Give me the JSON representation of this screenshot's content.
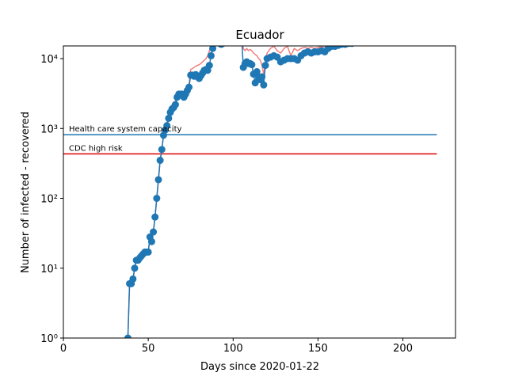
{
  "chart_data": {
    "type": "line",
    "title": "Ecuador",
    "xlabel": "Days since 2020-01-22",
    "ylabel": "Number of infected - recovered",
    "yscale": "log",
    "xlim": [
      0,
      231
    ],
    "ylim": [
      1,
      15200
    ],
    "xticks": [
      0,
      50,
      100,
      150,
      200
    ],
    "yticks": [
      {
        "value": 1,
        "label": "10⁰"
      },
      {
        "value": 10,
        "label": "10¹"
      },
      {
        "value": 100,
        "label": "10²"
      },
      {
        "value": 1000,
        "label": "10³"
      },
      {
        "value": 10000,
        "label": "10⁴"
      }
    ],
    "x": [
      38,
      39,
      40,
      41,
      42,
      43,
      44,
      45,
      46,
      47,
      48,
      49,
      50,
      51,
      52,
      53,
      54,
      55,
      56,
      57,
      58,
      59,
      60,
      61,
      62,
      63,
      64,
      65,
      66,
      67,
      68,
      69,
      70,
      71,
      72,
      73,
      74,
      75,
      76,
      77,
      78,
      79,
      80,
      81,
      82,
      83,
      84,
      85,
      86,
      87,
      88,
      89,
      90,
      91,
      92,
      93,
      94,
      95,
      96,
      97,
      98,
      99,
      100,
      101,
      102,
      103,
      104,
      105,
      106,
      107,
      108,
      109,
      110,
      111,
      112,
      113,
      114,
      115,
      116,
      117,
      118,
      119,
      120,
      122,
      124,
      126,
      128,
      130,
      132,
      134,
      136,
      138,
      140,
      142,
      144,
      146,
      148,
      150,
      152,
      154,
      156,
      158,
      160,
      162,
      164,
      166,
      168,
      170,
      172,
      174,
      176,
      178,
      180,
      182,
      184,
      186,
      188,
      190,
      192,
      194,
      196,
      198,
      200,
      202,
      204,
      206
    ],
    "series": [
      {
        "color": "#f08080",
        "markers": false,
        "values": [
          1,
          6,
          6,
          7,
          10,
          13,
          13,
          14,
          15,
          16,
          17,
          17,
          17,
          28,
          24,
          33,
          54,
          100,
          185,
          350,
          500,
          800,
          1000,
          1200,
          1500,
          1800,
          2000,
          2200,
          2500,
          3000,
          3200,
          3300,
          3300,
          3300,
          3400,
          3700,
          4200,
          7000,
          7200,
          7500,
          7800,
          8000,
          8200,
          8500,
          9000,
          9500,
          10000,
          11000,
          13000,
          15000,
          18000,
          20000,
          20000,
          20000,
          20000,
          20000,
          20000,
          20000,
          20000,
          20000,
          20000,
          20000,
          20000,
          20000,
          20000,
          20000,
          20000,
          20000,
          14000,
          13000,
          14000,
          13000,
          13500,
          13000,
          12000,
          11500,
          11000,
          10000,
          9500,
          8000,
          5900,
          9000,
          12000,
          14000,
          15000,
          13000,
          12000,
          14000,
          15000,
          11000,
          14000,
          13000,
          14000,
          14500,
          14000,
          14500,
          14000,
          14500,
          15000,
          14500,
          16000,
          17000,
          17000,
          17500,
          18000,
          18000,
          18500,
          18500,
          19000,
          19000,
          19500,
          19500,
          19500,
          20000,
          20000,
          20000,
          20000,
          20000,
          20000,
          20000,
          20000,
          20000,
          20000,
          20000,
          20000,
          20000
        ]
      },
      {
        "color": "#1f77b4",
        "markers": true,
        "values": [
          1,
          6,
          6,
          7,
          10,
          13,
          13,
          14,
          15,
          16,
          17,
          17,
          17,
          28,
          24,
          33,
          54,
          100,
          185,
          350,
          500,
          800,
          950,
          1100,
          1400,
          1700,
          1900,
          2000,
          2200,
          2800,
          3100,
          3100,
          3100,
          2800,
          3100,
          3500,
          3900,
          5800,
          5800,
          5600,
          5900,
          5500,
          5200,
          5700,
          6200,
          6800,
          7000,
          6800,
          8000,
          11000,
          14000,
          17000,
          20000,
          20000,
          16500,
          16000,
          16500,
          17500,
          19000,
          20000,
          20000,
          20000,
          20000,
          20000,
          20000,
          20000,
          20000,
          20000,
          7500,
          8500,
          9000,
          8500,
          8500,
          8200,
          6000,
          4500,
          6500,
          5500,
          5000,
          5500,
          4200,
          8000,
          10000,
          10500,
          11000,
          10500,
          9000,
          9500,
          10000,
          10000,
          10000,
          9500,
          11000,
          12000,
          12500,
          12000,
          12500,
          12500,
          13000,
          12500,
          14000,
          15000,
          15000,
          15500,
          16000,
          16000,
          16500,
          16500,
          17000,
          17000,
          17500,
          17500,
          17500,
          18000,
          18000,
          18000,
          18000,
          18500,
          18500,
          18500,
          18500,
          18500,
          18500,
          18500,
          18500,
          18500
        ]
      }
    ],
    "hlines": [
      {
        "label": "Health care system capacity",
        "value": 815,
        "color": "#1f77b4",
        "text_color": "#000000",
        "xmin": 0,
        "xmax": 220
      },
      {
        "label": "CDC high risk",
        "value": 433,
        "color": "#e00000",
        "text_color": "#e00000",
        "xmin": 0,
        "xmax": 220
      }
    ]
  }
}
